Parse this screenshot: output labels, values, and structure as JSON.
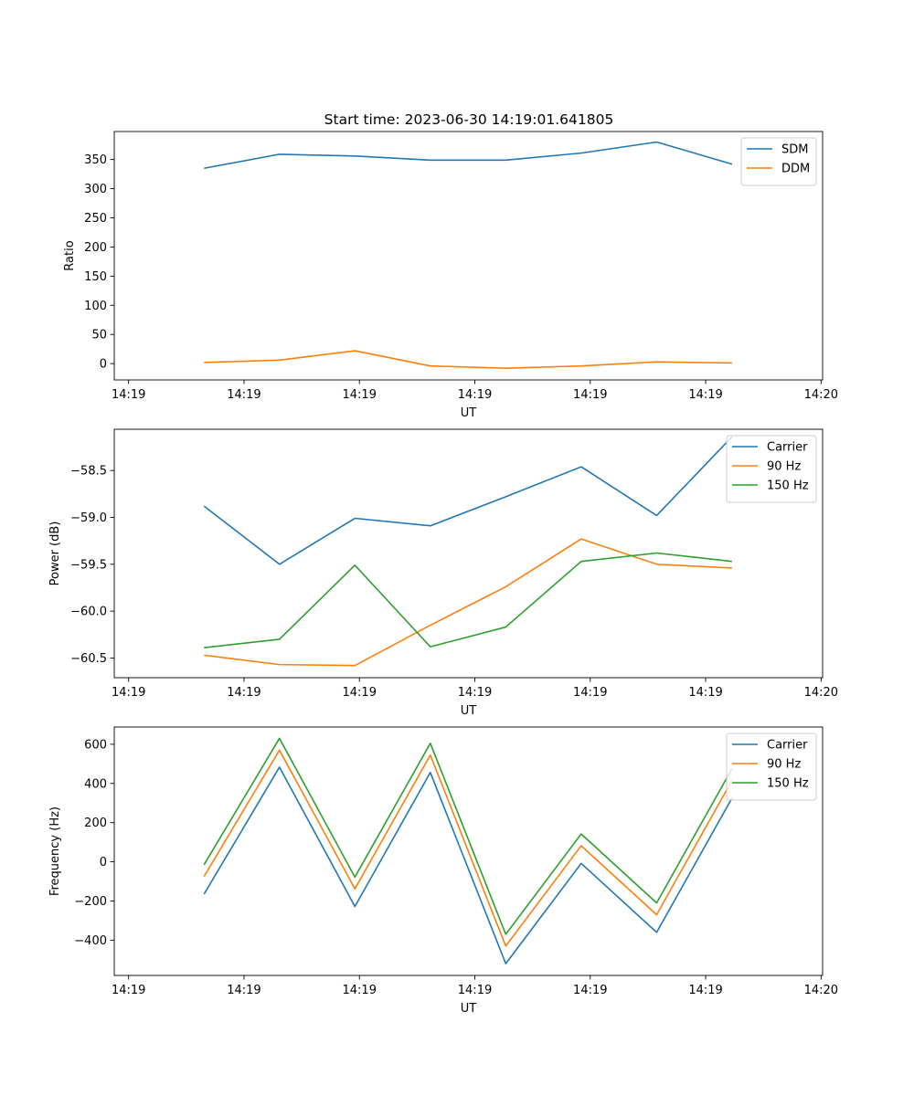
{
  "figure": {
    "title": "Start time: 2023-06-30 14:19:01.641805"
  },
  "chart_data": [
    {
      "type": "line",
      "xlabel": "UT",
      "ylabel": "Ratio",
      "x_tick_labels": [
        "14:19",
        "14:19",
        "14:19",
        "14:19",
        "14:19",
        "14:19",
        "14:20"
      ],
      "xlim": [
        -0.19,
        9.2
      ],
      "ylim": [
        -28,
        398
      ],
      "yticks": [
        0,
        50,
        100,
        150,
        200,
        250,
        300,
        350
      ],
      "ytick_labels": [
        "0",
        "50",
        "100",
        "150",
        "200",
        "250",
        "300",
        "350"
      ],
      "legend": "top-right",
      "series": [
        {
          "name": "SDM",
          "color": "#1f77b4",
          "x": [
            1,
            2,
            3,
            4,
            5,
            6,
            7,
            8
          ],
          "values": [
            335,
            359,
            356,
            349,
            349,
            361,
            380,
            342
          ]
        },
        {
          "name": "DDM",
          "color": "#ff7f0e",
          "x": [
            1,
            2,
            3,
            4,
            5,
            6,
            7,
            8
          ],
          "values": [
            2,
            6,
            22,
            -4,
            -8,
            -4,
            3,
            1
          ]
        }
      ]
    },
    {
      "type": "line",
      "xlabel": "UT",
      "ylabel": "Power (dB)",
      "x_tick_labels": [
        "14:19",
        "14:19",
        "14:19",
        "14:19",
        "14:19",
        "14:19",
        "14:20"
      ],
      "xlim": [
        -0.19,
        9.2
      ],
      "ylim": [
        -60.71,
        -58.06
      ],
      "yticks": [
        -60.5,
        -60.0,
        -59.5,
        -59.0,
        -58.5
      ],
      "ytick_labels": [
        "−60.5",
        "−60.0",
        "−59.5",
        "−59.0",
        "−58.5"
      ],
      "legend": "top-right",
      "series": [
        {
          "name": "Carrier",
          "color": "#1f77b4",
          "x": [
            1,
            2,
            3,
            4,
            5,
            6,
            7,
            8
          ],
          "values": [
            -58.88,
            -59.5,
            -59.01,
            -59.09,
            -58.78,
            -58.46,
            -58.98,
            -58.14
          ]
        },
        {
          "name": "90 Hz",
          "color": "#ff7f0e",
          "x": [
            1,
            2,
            3,
            4,
            5,
            6,
            7,
            8
          ],
          "values": [
            -60.47,
            -60.57,
            -60.58,
            -60.15,
            -59.74,
            -59.23,
            -59.5,
            -59.54
          ]
        },
        {
          "name": "150 Hz",
          "color": "#2ca02c",
          "x": [
            1,
            2,
            3,
            4,
            5,
            6,
            7,
            8
          ],
          "values": [
            -60.39,
            -60.3,
            -59.51,
            -60.38,
            -60.17,
            -59.47,
            -59.38,
            -59.47
          ]
        }
      ]
    },
    {
      "type": "line",
      "xlabel": "UT",
      "ylabel": "Frequency (Hz)",
      "x_tick_labels": [
        "14:19",
        "14:19",
        "14:19",
        "14:19",
        "14:19",
        "14:19",
        "14:20"
      ],
      "xlim": [
        -0.19,
        9.2
      ],
      "ylim": [
        -580,
        688
      ],
      "yticks": [
        -400,
        -200,
        0,
        200,
        400,
        600
      ],
      "ytick_labels": [
        "−400",
        "−200",
        "0",
        "200",
        "400",
        "600"
      ],
      "legend": "top-right",
      "series": [
        {
          "name": "Carrier",
          "color": "#1f77b4",
          "x": [
            1,
            2,
            3,
            4,
            5,
            6,
            7,
            8
          ],
          "values": [
            -165,
            483,
            -228,
            456,
            -520,
            -8,
            -360,
            326
          ]
        },
        {
          "name": "90 Hz",
          "color": "#ff7f0e",
          "x": [
            1,
            2,
            3,
            4,
            5,
            6,
            7,
            8
          ],
          "values": [
            -75,
            570,
            -138,
            545,
            -430,
            82,
            -270,
            416
          ]
        },
        {
          "name": "150 Hz",
          "color": "#2ca02c",
          "x": [
            1,
            2,
            3,
            4,
            5,
            6,
            7,
            8
          ],
          "values": [
            -15,
            630,
            -78,
            605,
            -370,
            142,
            -210,
            476
          ]
        }
      ]
    }
  ]
}
